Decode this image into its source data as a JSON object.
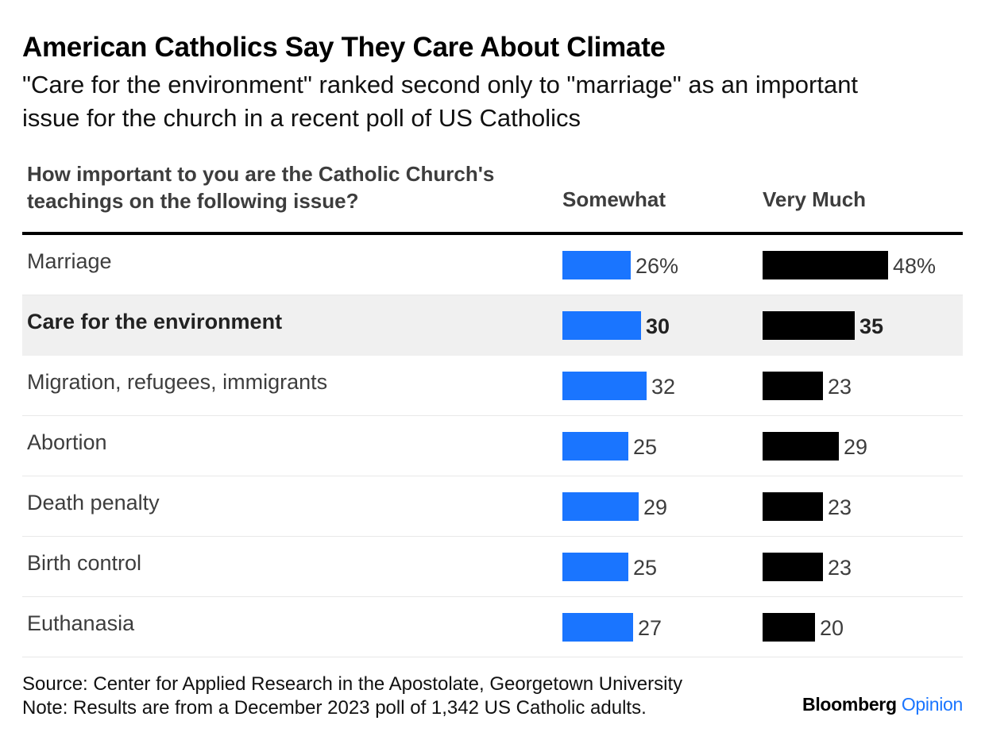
{
  "header": {
    "title": "American Catholics Say They Care About Climate",
    "subtitle": "\"Care for the environment\" ranked second only to \"marriage\" as an important issue for the church in a recent poll of US Catholics"
  },
  "table": {
    "question": "How important to you are the Catholic Church's teachings on the following issue?",
    "col_somewhat": "Somewhat",
    "col_very_much": "Very Much"
  },
  "colors": {
    "somewhat": "#1a75ff",
    "very_much": "#000000",
    "highlight_row": "#f0f0f0"
  },
  "chart_data": {
    "type": "bar",
    "unit": "%",
    "categories": [
      "Marriage",
      "Care for the environment",
      "Migration, refugees, immigrants",
      "Abortion",
      "Death penalty",
      "Birth control",
      "Euthanasia"
    ],
    "highlighted_category": "Care for the environment",
    "series": [
      {
        "name": "Somewhat",
        "values": [
          26,
          30,
          32,
          25,
          29,
          25,
          27
        ],
        "labels": [
          "26%",
          "30",
          "32",
          "25",
          "29",
          "25",
          "27"
        ]
      },
      {
        "name": "Very Much",
        "values": [
          48,
          35,
          23,
          29,
          23,
          23,
          20
        ],
        "labels": [
          "48%",
          "35",
          "23",
          "29",
          "23",
          "23",
          "20"
        ]
      }
    ]
  },
  "footer": {
    "source": "Source: Center for Applied Research in the Apostolate, Georgetown University",
    "note": "Note: Results are from a December 2023 poll of 1,342 US Catholic adults."
  },
  "brand": {
    "part1": "Bloomberg",
    "part2": "Opinion"
  }
}
